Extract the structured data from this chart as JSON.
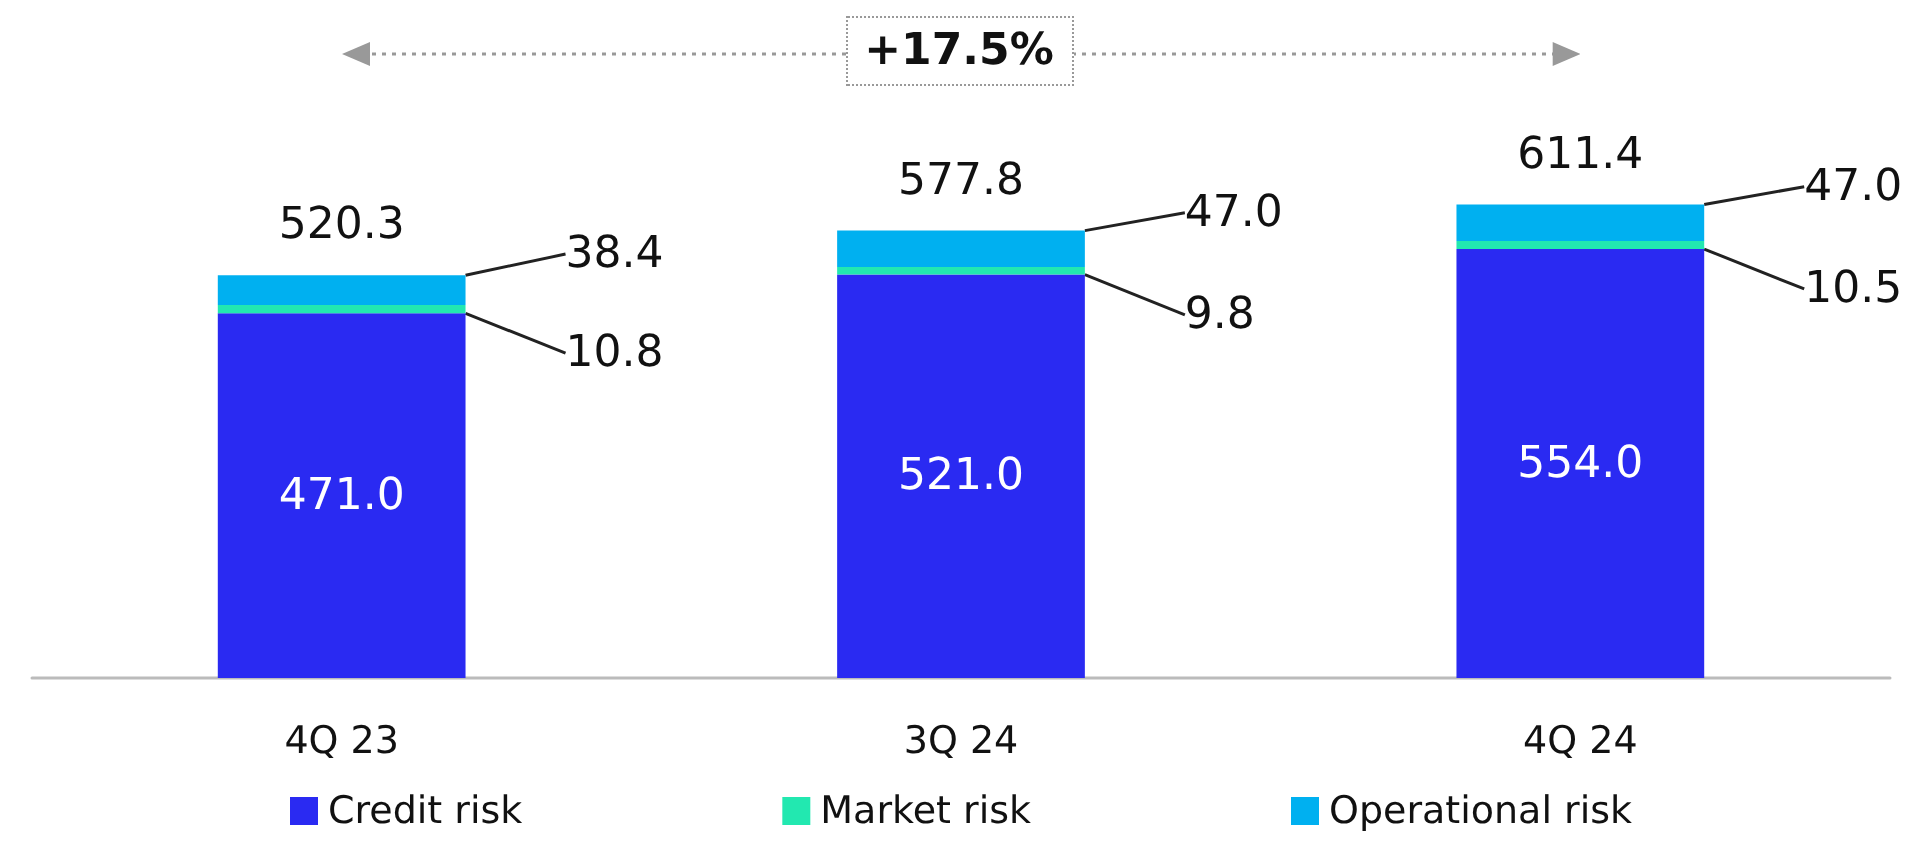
{
  "chart_data": {
    "type": "bar",
    "stacked": true,
    "categories": [
      "4Q 23",
      "3Q 24",
      "4Q 24"
    ],
    "series": [
      {
        "name": "Credit risk",
        "color": "#2a2af2",
        "values": [
          471,
          521,
          554
        ],
        "value_labels": [
          "471.0",
          "521.0",
          "554.0"
        ]
      },
      {
        "name": "Market risk",
        "color": "#22e8b0",
        "values": [
          10.8,
          9.8,
          10.5
        ],
        "value_labels": [
          "10.8",
          "9.8",
          "10.5"
        ]
      },
      {
        "name": "Operational risk",
        "color": "#00b0f0",
        "values": [
          38.4,
          47,
          47
        ],
        "value_labels": [
          "38.4",
          "47.0",
          "47.0"
        ]
      }
    ],
    "totals": [
      "520.3",
      "577.8",
      "611.4"
    ],
    "annotations": [
      "+17.5%"
    ],
    "legend": "bottom"
  }
}
